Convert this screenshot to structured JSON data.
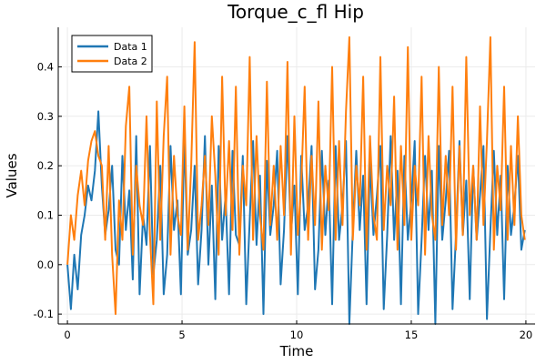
{
  "chart_data": {
    "type": "line",
    "title": "Torque_c_fl Hip",
    "xlabel": "Time",
    "ylabel": "Values",
    "xlim": [
      -0.4,
      20.4
    ],
    "ylim": [
      -0.12,
      0.48
    ],
    "xticks": [
      0,
      5,
      10,
      15,
      20
    ],
    "xtick_labels": [
      "0",
      "5",
      "10",
      "15",
      "20"
    ],
    "yticks": [
      -0.1,
      0.0,
      0.1,
      0.2,
      0.3,
      0.4
    ],
    "ytick_labels": [
      "-0.1",
      "0.0",
      "0.1",
      "0.2",
      "0.3",
      "0.4"
    ],
    "grid": true,
    "legend_position": "top-left",
    "series": [
      {
        "name": "Data 1",
        "color": "#1f77b4",
        "x": [
          0.0,
          0.15,
          0.3,
          0.45,
          0.6,
          0.75,
          0.9,
          1.05,
          1.2,
          1.35,
          1.5,
          1.65,
          1.8,
          1.95,
          2.1,
          2.25,
          2.4,
          2.55,
          2.7,
          2.85,
          3.0,
          3.15,
          3.3,
          3.45,
          3.6,
          3.75,
          3.9,
          4.05,
          4.2,
          4.35,
          4.5,
          4.65,
          4.8,
          4.95,
          5.1,
          5.25,
          5.4,
          5.55,
          5.7,
          5.85,
          6.0,
          6.15,
          6.3,
          6.45,
          6.6,
          6.75,
          6.9,
          7.05,
          7.2,
          7.35,
          7.5,
          7.65,
          7.8,
          7.95,
          8.1,
          8.25,
          8.4,
          8.55,
          8.7,
          8.85,
          9.0,
          9.15,
          9.3,
          9.45,
          9.6,
          9.75,
          9.9,
          10.05,
          10.2,
          10.35,
          10.5,
          10.65,
          10.8,
          10.95,
          11.1,
          11.25,
          11.4,
          11.55,
          11.7,
          11.85,
          12.0,
          12.15,
          12.3,
          12.45,
          12.6,
          12.75,
          12.9,
          13.05,
          13.2,
          13.35,
          13.5,
          13.65,
          13.8,
          13.95,
          14.1,
          14.25,
          14.4,
          14.55,
          14.7,
          14.85,
          15.0,
          15.15,
          15.3,
          15.45,
          15.6,
          15.75,
          15.9,
          16.05,
          16.2,
          16.35,
          16.5,
          16.65,
          16.8,
          16.95,
          17.1,
          17.25,
          17.4,
          17.55,
          17.7,
          17.85,
          18.0,
          18.15,
          18.3,
          18.45,
          18.6,
          18.75,
          18.9,
          19.05,
          19.2,
          19.35,
          19.5,
          19.65,
          19.8,
          19.95
        ],
        "y": [
          0.0,
          -0.09,
          0.02,
          -0.05,
          0.06,
          0.1,
          0.16,
          0.13,
          0.19,
          0.31,
          0.16,
          0.06,
          0.11,
          0.2,
          0.03,
          0.0,
          0.22,
          0.07,
          0.15,
          -0.03,
          0.26,
          -0.06,
          0.1,
          0.04,
          0.24,
          -0.02,
          0.05,
          0.2,
          -0.06,
          0.02,
          0.24,
          0.07,
          0.13,
          -0.06,
          0.26,
          0.02,
          0.07,
          0.2,
          -0.04,
          0.07,
          0.26,
          0.0,
          0.16,
          -0.07,
          0.24,
          0.05,
          0.14,
          -0.06,
          0.23,
          0.06,
          0.04,
          0.22,
          -0.08,
          0.09,
          0.25,
          0.04,
          0.18,
          -0.1,
          0.21,
          0.06,
          0.12,
          0.23,
          -0.04,
          0.07,
          0.26,
          0.06,
          0.16,
          -0.06,
          0.22,
          0.07,
          0.12,
          0.24,
          -0.05,
          0.03,
          0.23,
          0.06,
          0.17,
          -0.08,
          0.24,
          0.05,
          0.12,
          0.25,
          -0.12,
          0.07,
          0.23,
          0.07,
          0.18,
          -0.08,
          0.21,
          0.06,
          0.14,
          0.24,
          -0.09,
          0.06,
          0.26,
          0.05,
          0.19,
          -0.08,
          0.22,
          0.05,
          0.13,
          0.25,
          -0.1,
          0.05,
          0.22,
          0.07,
          0.19,
          -0.12,
          0.24,
          0.05,
          0.13,
          0.23,
          -0.09,
          0.06,
          0.25,
          0.06,
          0.17,
          -0.07,
          0.2,
          0.05,
          0.14,
          0.24,
          -0.11,
          0.07,
          0.23,
          0.06,
          0.18,
          -0.07,
          0.2,
          0.06,
          0.12,
          0.22,
          0.03,
          0.07
        ]
      },
      {
        "name": "Data 2",
        "color": "#ff7f0e",
        "x": [
          0.0,
          0.15,
          0.3,
          0.45,
          0.6,
          0.75,
          0.9,
          1.05,
          1.2,
          1.35,
          1.5,
          1.65,
          1.8,
          1.95,
          2.1,
          2.25,
          2.4,
          2.55,
          2.7,
          2.85,
          3.0,
          3.15,
          3.3,
          3.45,
          3.6,
          3.75,
          3.9,
          4.05,
          4.2,
          4.35,
          4.5,
          4.65,
          4.8,
          4.95,
          5.1,
          5.25,
          5.4,
          5.55,
          5.7,
          5.85,
          6.0,
          6.15,
          6.3,
          6.45,
          6.6,
          6.75,
          6.9,
          7.05,
          7.2,
          7.35,
          7.5,
          7.65,
          7.8,
          7.95,
          8.1,
          8.25,
          8.4,
          8.55,
          8.7,
          8.85,
          9.0,
          9.15,
          9.3,
          9.45,
          9.6,
          9.75,
          9.9,
          10.05,
          10.2,
          10.35,
          10.5,
          10.65,
          10.8,
          10.95,
          11.1,
          11.25,
          11.4,
          11.55,
          11.7,
          11.85,
          12.0,
          12.15,
          12.3,
          12.45,
          12.6,
          12.75,
          12.9,
          13.05,
          13.2,
          13.35,
          13.5,
          13.65,
          13.8,
          13.95,
          14.1,
          14.25,
          14.4,
          14.55,
          14.7,
          14.85,
          15.0,
          15.15,
          15.3,
          15.45,
          15.6,
          15.75,
          15.9,
          16.05,
          16.2,
          16.35,
          16.5,
          16.65,
          16.8,
          16.95,
          17.1,
          17.25,
          17.4,
          17.55,
          17.7,
          17.85,
          18.0,
          18.15,
          18.3,
          18.45,
          18.6,
          18.75,
          18.9,
          19.05,
          19.2,
          19.35,
          19.5,
          19.65,
          19.8,
          19.95
        ],
        "y": [
          0.0,
          0.1,
          0.05,
          0.14,
          0.19,
          0.12,
          0.21,
          0.25,
          0.27,
          0.22,
          0.2,
          0.05,
          0.24,
          0.02,
          -0.1,
          0.13,
          0.05,
          0.28,
          0.36,
          0.02,
          0.2,
          0.12,
          0.08,
          0.3,
          0.06,
          -0.08,
          0.33,
          0.05,
          0.26,
          0.38,
          0.02,
          0.22,
          0.1,
          0.06,
          0.32,
          0.03,
          0.2,
          0.45,
          0.05,
          0.12,
          0.22,
          0.08,
          0.3,
          0.18,
          0.02,
          0.38,
          0.1,
          0.25,
          0.07,
          0.36,
          0.02,
          0.2,
          0.12,
          0.42,
          0.05,
          0.26,
          0.1,
          0.03,
          0.37,
          0.08,
          0.2,
          0.05,
          0.24,
          0.1,
          0.41,
          0.02,
          0.3,
          0.06,
          0.16,
          0.36,
          0.05,
          0.22,
          0.08,
          0.33,
          0.03,
          0.2,
          0.11,
          0.4,
          0.05,
          0.25,
          0.08,
          0.31,
          0.46,
          0.05,
          0.2,
          0.12,
          0.38,
          0.03,
          0.26,
          0.1,
          0.05,
          0.42,
          0.07,
          0.2,
          0.12,
          0.34,
          0.03,
          0.24,
          0.08,
          0.44,
          0.05,
          0.2,
          0.12,
          0.38,
          0.02,
          0.26,
          0.1,
          0.05,
          0.4,
          0.08,
          0.22,
          0.1,
          0.36,
          0.03,
          0.24,
          0.06,
          0.42,
          0.1,
          0.2,
          0.05,
          0.32,
          0.08,
          0.25,
          0.46,
          0.03,
          0.2,
          0.11,
          0.36,
          0.05,
          0.24,
          0.08,
          0.3,
          0.1,
          0.05
        ]
      }
    ]
  }
}
